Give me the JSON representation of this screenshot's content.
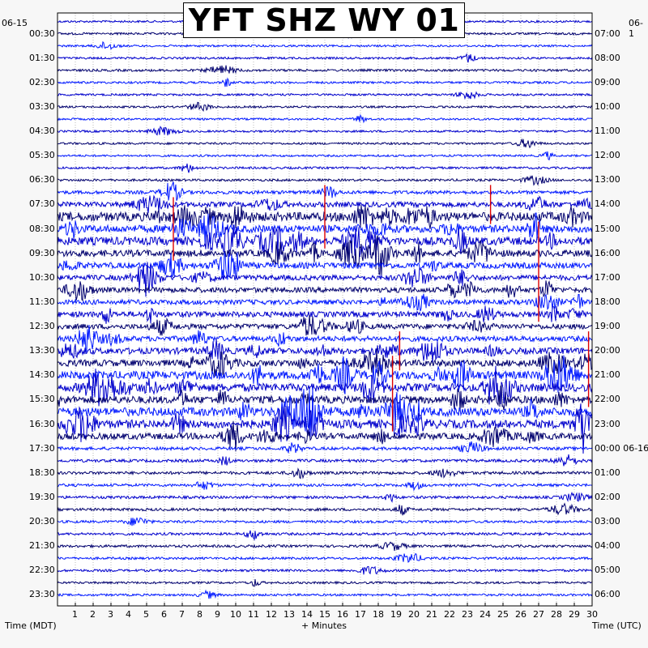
{
  "title": "YFT SHZ WY 01",
  "left_date": "06-15",
  "right_date": "06-1",
  "left_axis_label": "Time (MDT)",
  "right_axis_label": "Time (UTC)",
  "x_axis_label": "+ Minutes",
  "colors": {
    "trace_a": "#0000cc",
    "trace_b": "#00006e",
    "trace_c": "#0018ff",
    "event_marker": "#dd0000",
    "frame": "#000000",
    "background": "#ffffff"
  },
  "chart_data": {
    "type": "seismogram-helicorder",
    "station": "YFT SHZ WY 01",
    "x_ticks": [
      1,
      2,
      3,
      4,
      5,
      6,
      7,
      8,
      9,
      10,
      11,
      12,
      13,
      14,
      15,
      16,
      17,
      18,
      19,
      20,
      21,
      22,
      23,
      24,
      25,
      26,
      27,
      28,
      29,
      30
    ],
    "xlim": [
      0,
      30
    ],
    "left_ticks": [
      "00:30",
      "01:30",
      "02:30",
      "03:30",
      "04:30",
      "05:30",
      "06:30",
      "07:30",
      "08:30",
      "09:30",
      "10:30",
      "11:30",
      "12:30",
      "13:30",
      "14:30",
      "15:30",
      "16:30",
      "17:30",
      "18:30",
      "19:30",
      "20:30",
      "21:30",
      "22:30",
      "23:30"
    ],
    "right_ticks": [
      "07:00",
      "08:00",
      "09:00",
      "10:00",
      "11:00",
      "12:00",
      "13:00",
      "14:00",
      "15:00",
      "16:00",
      "17:00",
      "18:00",
      "19:00",
      "20:00",
      "21:00",
      "22:00",
      "23:00",
      "00:00 06-16",
      "01:00",
      "02:00",
      "03:00",
      "04:00",
      "05:00",
      "06:00"
    ],
    "lines_per_hour": 2,
    "trace_count": 48,
    "trace_color_cycle": [
      "#0000cc",
      "#00006e",
      "#0018ff"
    ],
    "activity_by_trace": [
      0.12,
      0.15,
      0.1,
      0.12,
      0.2,
      0.15,
      0.12,
      0.1,
      0.1,
      0.12,
      0.12,
      0.1,
      0.15,
      0.2,
      0.5,
      1.0,
      2.0,
      1.6,
      1.8,
      1.4,
      1.2,
      1.0,
      1.0,
      0.9,
      1.1,
      1.0,
      1.0,
      1.3,
      1.4,
      1.8,
      1.8,
      1.6,
      1.9,
      1.9,
      1.3,
      0.4,
      0.35,
      0.35,
      0.3,
      0.3,
      0.3,
      0.25,
      0.25,
      0.25,
      0.2,
      0.2,
      0.15,
      0.15
    ],
    "event_markers": [
      {
        "trace": 15,
        "minute": 6.5,
        "lines": 5
      },
      {
        "trace": 14,
        "minute": 15.0,
        "lines": 5
      },
      {
        "trace": 14,
        "minute": 24.3,
        "lines": 3
      },
      {
        "trace": 26,
        "minute": 19.2,
        "lines": 3
      },
      {
        "trace": 28,
        "minute": 18.8,
        "lines": 6
      },
      {
        "trace": 26,
        "minute": 29.8,
        "lines": 6
      },
      {
        "trace": 17,
        "minute": 27.0,
        "lines": 8
      }
    ]
  }
}
